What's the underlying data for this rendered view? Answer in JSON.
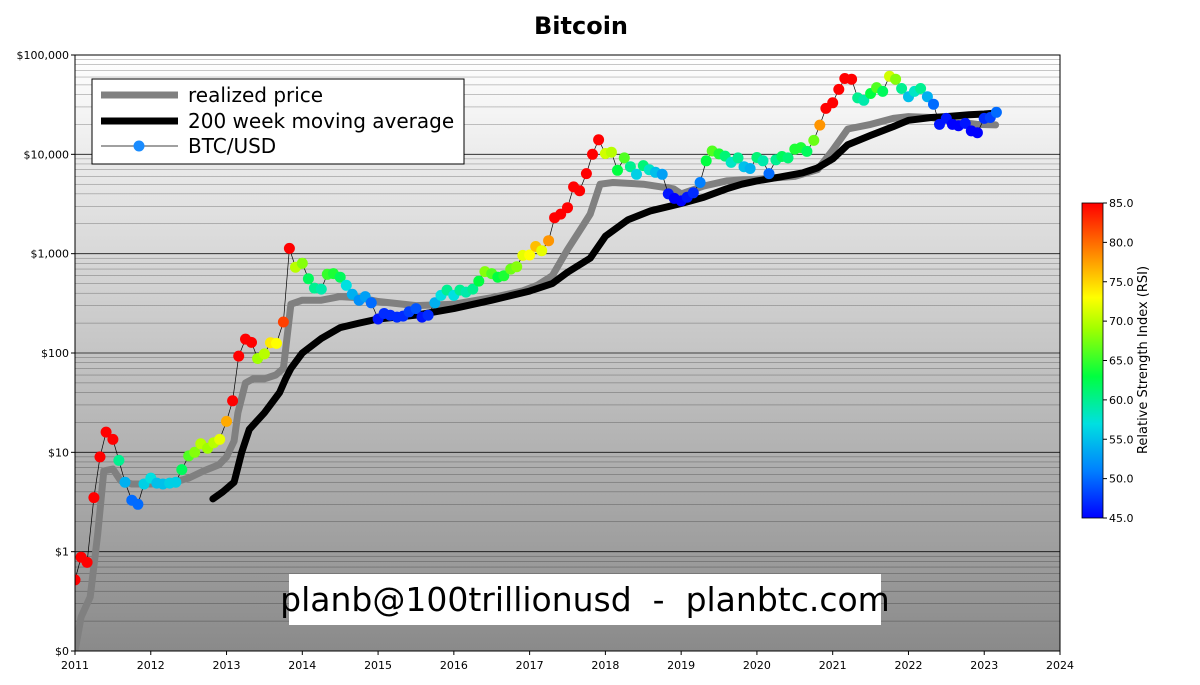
{
  "chart_data": {
    "type": "scatter",
    "title": "Bitcoin",
    "y_scale": "log",
    "ylim": [
      0.1,
      100000
    ],
    "xlim": [
      2011,
      2024
    ],
    "x_ticks": [
      "2011",
      "2012",
      "2013",
      "2014",
      "2015",
      "2016",
      "2017",
      "2018",
      "2019",
      "2020",
      "2021",
      "2022",
      "2023",
      "2024"
    ],
    "y_ticks": [
      {
        "value": 0.1,
        "label": "$0"
      },
      {
        "value": 1,
        "label": "$1"
      },
      {
        "value": 10,
        "label": "$10"
      },
      {
        "value": 100,
        "label": "$100"
      },
      {
        "value": 1000,
        "label": "$1,000"
      },
      {
        "value": 10000,
        "label": "$10,000"
      },
      {
        "value": 100000,
        "label": "$100,000"
      }
    ],
    "grid": true,
    "background": "gray-gradient",
    "legend_position": "top-left",
    "legend": [
      "realized price",
      "200 week moving average",
      "BTC/USD"
    ],
    "colorbar": {
      "label": "Relative Strength Index (RSI)",
      "min": 45,
      "max": 85,
      "ticks": [
        "45.0",
        "50.0",
        "55.0",
        "60.0",
        "65.0",
        "70.0",
        "75.0",
        "80.0",
        "85.0"
      ]
    },
    "watermark": "planb@100trillionusd  -  planbtc.com",
    "series": [
      {
        "name": "realized price",
        "color": "#808080",
        "points": [
          [
            2011.0,
            0.1
          ],
          [
            2011.08,
            0.22
          ],
          [
            2011.2,
            0.35
          ],
          [
            2011.3,
            1.5
          ],
          [
            2011.38,
            6.5
          ],
          [
            2011.5,
            6.8
          ],
          [
            2011.6,
            5.2
          ],
          [
            2011.75,
            4.8
          ],
          [
            2012.0,
            4.8
          ],
          [
            2012.3,
            5.0
          ],
          [
            2012.5,
            5.5
          ],
          [
            2012.7,
            6.5
          ],
          [
            2012.9,
            7.5
          ],
          [
            2013.0,
            9
          ],
          [
            2013.1,
            13
          ],
          [
            2013.15,
            25
          ],
          [
            2013.25,
            50
          ],
          [
            2013.35,
            55
          ],
          [
            2013.5,
            55
          ],
          [
            2013.65,
            60
          ],
          [
            2013.75,
            70
          ],
          [
            2013.85,
            310
          ],
          [
            2014.0,
            340
          ],
          [
            2014.25,
            340
          ],
          [
            2014.5,
            370
          ],
          [
            2014.75,
            360
          ],
          [
            2015.0,
            330
          ],
          [
            2015.5,
            300
          ],
          [
            2016.0,
            310
          ],
          [
            2016.5,
            360
          ],
          [
            2016.9,
            420
          ],
          [
            2017.1,
            480
          ],
          [
            2017.3,
            600
          ],
          [
            2017.5,
            1100
          ],
          [
            2017.7,
            1900
          ],
          [
            2017.8,
            2500
          ],
          [
            2017.93,
            5000
          ],
          [
            2018.1,
            5200
          ],
          [
            2018.5,
            5000
          ],
          [
            2018.9,
            4500
          ],
          [
            2019.0,
            4000
          ],
          [
            2019.3,
            4800
          ],
          [
            2019.6,
            5400
          ],
          [
            2020.0,
            5600
          ],
          [
            2020.5,
            6000
          ],
          [
            2020.8,
            7000
          ],
          [
            2021.0,
            11000
          ],
          [
            2021.2,
            18000
          ],
          [
            2021.5,
            20000
          ],
          [
            2021.8,
            23000
          ],
          [
            2022.0,
            24000
          ],
          [
            2022.3,
            23500
          ],
          [
            2022.6,
            21500
          ],
          [
            2022.9,
            20000
          ],
          [
            2023.15,
            19800
          ]
        ]
      },
      {
        "name": "200 week moving average",
        "color": "#000000",
        "points": [
          [
            2012.82,
            3.4
          ],
          [
            2012.95,
            4.0
          ],
          [
            2013.1,
            5.0
          ],
          [
            2013.2,
            10
          ],
          [
            2013.3,
            17
          ],
          [
            2013.5,
            25
          ],
          [
            2013.7,
            40
          ],
          [
            2013.78,
            55
          ],
          [
            2013.85,
            70
          ],
          [
            2014.0,
            100
          ],
          [
            2014.25,
            140
          ],
          [
            2014.5,
            180
          ],
          [
            2014.75,
            200
          ],
          [
            2015.0,
            220
          ],
          [
            2015.5,
            240
          ],
          [
            2016.0,
            280
          ],
          [
            2016.5,
            340
          ],
          [
            2017.0,
            420
          ],
          [
            2017.3,
            500
          ],
          [
            2017.5,
            650
          ],
          [
            2017.8,
            900
          ],
          [
            2018.0,
            1500
          ],
          [
            2018.3,
            2200
          ],
          [
            2018.6,
            2700
          ],
          [
            2019.0,
            3200
          ],
          [
            2019.3,
            3700
          ],
          [
            2019.6,
            4500
          ],
          [
            2019.8,
            5000
          ],
          [
            2020.0,
            5400
          ],
          [
            2020.3,
            5900
          ],
          [
            2020.6,
            6500
          ],
          [
            2020.8,
            7300
          ],
          [
            2021.0,
            9000
          ],
          [
            2021.2,
            12500
          ],
          [
            2021.5,
            15500
          ],
          [
            2021.8,
            19000
          ],
          [
            2022.0,
            22000
          ],
          [
            2022.3,
            23500
          ],
          [
            2022.5,
            24000
          ],
          [
            2022.8,
            25000
          ],
          [
            2023.0,
            25500
          ],
          [
            2023.15,
            26000
          ]
        ]
      },
      {
        "name": "BTC/USD",
        "color": "#000000",
        "points": [
          [
            2011.0,
            0.52,
            85
          ],
          [
            2011.08,
            0.88,
            85
          ],
          [
            2011.16,
            0.78,
            85
          ],
          [
            2011.25,
            3.5,
            85
          ],
          [
            2011.33,
            9,
            85
          ],
          [
            2011.41,
            16,
            85
          ],
          [
            2011.5,
            13.5,
            85
          ],
          [
            2011.58,
            8.3,
            60
          ],
          [
            2011.66,
            5,
            54
          ],
          [
            2011.75,
            3.3,
            50
          ],
          [
            2011.83,
            3,
            50
          ],
          [
            2011.91,
            4.8,
            56
          ],
          [
            2012.0,
            5.5,
            57
          ],
          [
            2012.08,
            4.9,
            55
          ],
          [
            2012.16,
            4.8,
            55
          ],
          [
            2012.25,
            4.9,
            56
          ],
          [
            2012.33,
            5.0,
            56
          ],
          [
            2012.41,
            6.7,
            62
          ],
          [
            2012.5,
            9.2,
            66
          ],
          [
            2012.58,
            10,
            68
          ],
          [
            2012.66,
            12.2,
            70
          ],
          [
            2012.75,
            11.0,
            69
          ],
          [
            2012.83,
            12.5,
            70
          ],
          [
            2012.91,
            13.5,
            72
          ],
          [
            2013.0,
            20.5,
            77
          ],
          [
            2013.08,
            33,
            85
          ],
          [
            2013.16,
            93,
            85
          ],
          [
            2013.25,
            138,
            85
          ],
          [
            2013.33,
            128,
            85
          ],
          [
            2013.41,
            88,
            69
          ],
          [
            2013.5,
            98,
            70
          ],
          [
            2013.58,
            127,
            74
          ],
          [
            2013.66,
            125,
            73
          ],
          [
            2013.75,
            205,
            82
          ],
          [
            2013.83,
            1130,
            85
          ],
          [
            2013.91,
            730,
            70
          ],
          [
            2014.0,
            800,
            68
          ],
          [
            2014.08,
            560,
            62
          ],
          [
            2014.16,
            450,
            60
          ],
          [
            2014.25,
            440,
            59
          ],
          [
            2014.33,
            620,
            65
          ],
          [
            2014.41,
            630,
            64
          ],
          [
            2014.5,
            580,
            62
          ],
          [
            2014.58,
            480,
            57
          ],
          [
            2014.66,
            390,
            54
          ],
          [
            2014.75,
            340,
            52
          ],
          [
            2014.83,
            370,
            53
          ],
          [
            2014.91,
            320,
            50
          ],
          [
            2015.0,
            220,
            46
          ],
          [
            2015.08,
            250,
            47
          ],
          [
            2015.16,
            240,
            47
          ],
          [
            2015.25,
            230,
            47
          ],
          [
            2015.33,
            235,
            47
          ],
          [
            2015.41,
            260,
            48
          ],
          [
            2015.5,
            280,
            49
          ],
          [
            2015.58,
            230,
            46
          ],
          [
            2015.66,
            240,
            47
          ],
          [
            2015.75,
            320,
            54
          ],
          [
            2015.83,
            380,
            57
          ],
          [
            2015.91,
            430,
            60
          ],
          [
            2016.0,
            380,
            57
          ],
          [
            2016.08,
            430,
            60
          ],
          [
            2016.16,
            410,
            59
          ],
          [
            2016.25,
            440,
            60
          ],
          [
            2016.33,
            530,
            63
          ],
          [
            2016.41,
            660,
            68
          ],
          [
            2016.5,
            630,
            66
          ],
          [
            2016.58,
            580,
            63
          ],
          [
            2016.66,
            600,
            64
          ],
          [
            2016.75,
            700,
            67
          ],
          [
            2016.83,
            740,
            68
          ],
          [
            2016.91,
            960,
            72
          ],
          [
            2017.0,
            970,
            73
          ],
          [
            2017.08,
            1180,
            76
          ],
          [
            2017.16,
            1070,
            72
          ],
          [
            2017.25,
            1350,
            78
          ],
          [
            2017.33,
            2300,
            85
          ],
          [
            2017.41,
            2500,
            85
          ],
          [
            2017.5,
            2900,
            85
          ],
          [
            2017.58,
            4700,
            85
          ],
          [
            2017.66,
            4300,
            85
          ],
          [
            2017.75,
            6400,
            85
          ],
          [
            2017.83,
            10000,
            85
          ],
          [
            2017.91,
            14000,
            85
          ],
          [
            2018.0,
            10200,
            71
          ],
          [
            2018.08,
            10500,
            70
          ],
          [
            2018.16,
            6900,
            63
          ],
          [
            2018.25,
            9200,
            66
          ],
          [
            2018.33,
            7500,
            60
          ],
          [
            2018.41,
            6300,
            56
          ],
          [
            2018.5,
            7700,
            61
          ],
          [
            2018.58,
            7000,
            58
          ],
          [
            2018.66,
            6600,
            55
          ],
          [
            2018.75,
            6300,
            53
          ],
          [
            2018.83,
            4000,
            46
          ],
          [
            2018.91,
            3600,
            45
          ],
          [
            2019.0,
            3400,
            45
          ],
          [
            2019.08,
            3700,
            46
          ],
          [
            2019.16,
            4100,
            47
          ],
          [
            2019.25,
            5200,
            51
          ],
          [
            2019.33,
            8600,
            63
          ],
          [
            2019.41,
            10800,
            66
          ],
          [
            2019.5,
            10100,
            64
          ],
          [
            2019.58,
            9600,
            61
          ],
          [
            2019.66,
            8300,
            58
          ],
          [
            2019.75,
            9200,
            60
          ],
          [
            2019.83,
            7500,
            55
          ],
          [
            2019.91,
            7200,
            54
          ],
          [
            2020.0,
            9300,
            61
          ],
          [
            2020.08,
            8600,
            59
          ],
          [
            2020.16,
            6400,
            50
          ],
          [
            2020.25,
            8800,
            60
          ],
          [
            2020.33,
            9500,
            62
          ],
          [
            2020.41,
            9200,
            61
          ],
          [
            2020.5,
            11300,
            64
          ],
          [
            2020.58,
            11700,
            64
          ],
          [
            2020.66,
            10700,
            62
          ],
          [
            2020.75,
            13800,
            67
          ],
          [
            2020.83,
            19700,
            78
          ],
          [
            2020.91,
            29000,
            85
          ],
          [
            2021.0,
            33000,
            85
          ],
          [
            2021.08,
            45000,
            85
          ],
          [
            2021.16,
            58000,
            85
          ],
          [
            2021.25,
            57000,
            85
          ],
          [
            2021.33,
            37000,
            60
          ],
          [
            2021.41,
            35000,
            59
          ],
          [
            2021.5,
            41000,
            63
          ],
          [
            2021.58,
            47000,
            66
          ],
          [
            2021.66,
            43000,
            62
          ],
          [
            2021.75,
            61000,
            71
          ],
          [
            2021.83,
            57000,
            68
          ],
          [
            2021.91,
            46000,
            60
          ],
          [
            2022.0,
            38000,
            55
          ],
          [
            2022.08,
            43000,
            58
          ],
          [
            2022.16,
            46000,
            60
          ],
          [
            2022.25,
            38000,
            54
          ],
          [
            2022.33,
            32000,
            50
          ],
          [
            2022.41,
            20000,
            46
          ],
          [
            2022.5,
            23000,
            46
          ],
          [
            2022.58,
            20000,
            45
          ],
          [
            2022.66,
            19400,
            45
          ],
          [
            2022.75,
            20500,
            46
          ],
          [
            2022.83,
            17200,
            45
          ],
          [
            2022.91,
            16500,
            45
          ],
          [
            2023.0,
            23000,
            47
          ],
          [
            2023.08,
            23500,
            48
          ],
          [
            2023.16,
            26500,
            50
          ]
        ]
      }
    ]
  }
}
